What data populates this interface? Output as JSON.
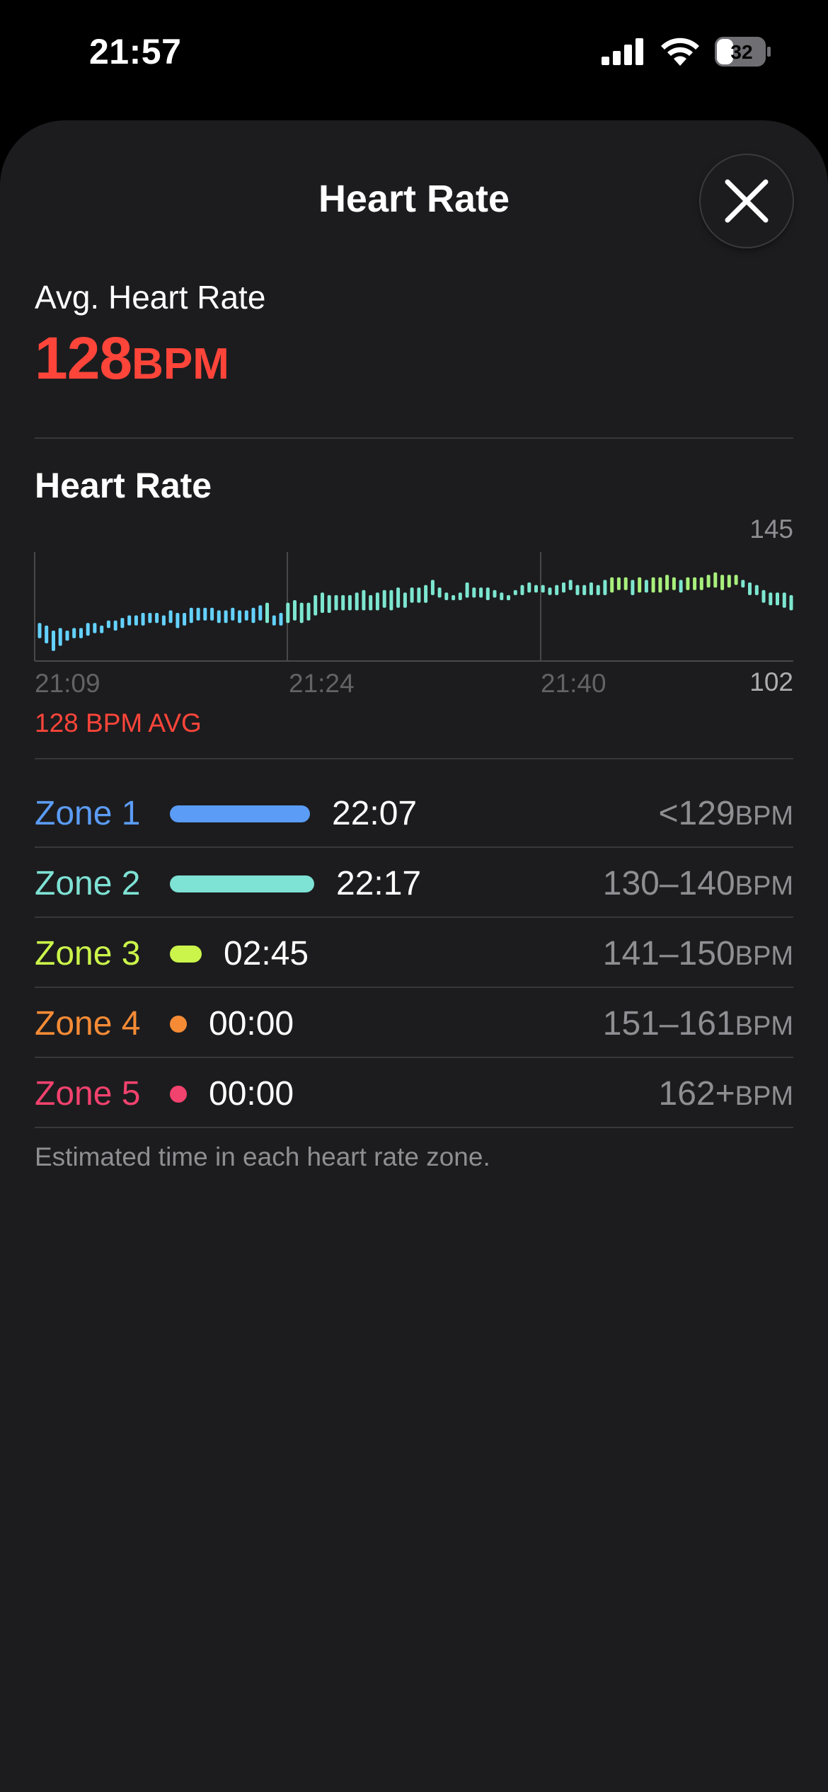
{
  "status_bar": {
    "time": "21:57",
    "battery": "32",
    "icons": [
      "signal-icon",
      "wifi-icon",
      "battery-icon"
    ]
  },
  "sheet": {
    "title": "Heart Rate",
    "close_icon": "close-icon"
  },
  "average": {
    "label": "Avg. Heart Rate",
    "value": "128",
    "unit": "BPM",
    "color": "#ff453a"
  },
  "chart": {
    "title": "Heart Rate",
    "avg_label": "128 BPM AVG"
  },
  "chart_data": {
    "type": "bar",
    "title": "",
    "x_tick_labels": [
      "21:09",
      "21:24",
      "21:40"
    ],
    "y_tick_labels": [
      "145",
      "102"
    ],
    "ylim": [
      102,
      145
    ],
    "grid": true,
    "series": [
      {
        "values": [
          [
            111,
            117
          ],
          [
            109,
            116
          ],
          [
            106,
            114
          ],
          [
            108,
            115
          ],
          [
            110,
            114
          ],
          [
            111,
            115
          ],
          [
            111,
            115
          ],
          [
            112,
            117
          ],
          [
            113,
            117
          ],
          [
            113,
            116
          ],
          [
            115,
            118
          ],
          [
            114,
            118
          ],
          [
            115,
            119
          ],
          [
            116,
            120
          ],
          [
            116,
            120
          ],
          [
            116,
            121
          ],
          [
            117,
            121
          ],
          [
            117,
            121
          ],
          [
            116,
            120
          ],
          [
            117,
            122
          ],
          [
            115,
            121
          ],
          [
            116,
            121
          ],
          [
            117,
            123
          ],
          [
            118,
            123
          ],
          [
            118,
            123
          ],
          [
            118,
            123
          ],
          [
            117,
            122
          ],
          [
            117,
            122
          ],
          [
            118,
            123
          ],
          [
            117,
            122
          ],
          [
            118,
            122
          ],
          [
            117,
            123
          ],
          [
            118,
            124
          ],
          [
            117,
            125
          ],
          [
            116,
            120
          ],
          [
            116,
            121
          ],
          [
            117,
            125
          ],
          [
            118,
            126
          ],
          [
            117,
            125
          ],
          [
            118,
            125
          ],
          [
            120,
            128
          ],
          [
            121,
            129
          ],
          [
            121,
            128
          ],
          [
            122,
            128
          ],
          [
            122,
            128
          ],
          [
            122,
            128
          ],
          [
            122,
            129
          ],
          [
            122,
            130
          ],
          [
            122,
            128
          ],
          [
            122,
            129
          ],
          [
            123,
            130
          ],
          [
            122,
            130
          ],
          [
            123,
            131
          ],
          [
            123,
            129
          ],
          [
            125,
            131
          ],
          [
            125,
            131
          ],
          [
            125,
            132
          ],
          [
            128,
            134
          ],
          [
            127,
            131
          ],
          [
            126,
            129
          ],
          [
            126,
            128
          ],
          [
            126,
            129
          ],
          [
            127,
            133
          ],
          [
            127,
            131
          ],
          [
            127,
            131
          ],
          [
            126,
            131
          ],
          [
            127,
            130
          ],
          [
            126,
            129
          ],
          [
            126,
            128
          ],
          [
            128,
            130
          ],
          [
            128,
            132
          ],
          [
            129,
            133
          ],
          [
            129,
            132
          ],
          [
            129,
            132
          ],
          [
            128,
            131
          ],
          [
            128,
            132
          ],
          [
            129,
            133
          ],
          [
            130,
            134
          ],
          [
            128,
            132
          ],
          [
            128,
            132
          ],
          [
            128,
            133
          ],
          [
            128,
            132
          ],
          [
            128,
            134
          ],
          [
            129,
            135
          ],
          [
            130,
            135
          ],
          [
            130,
            135
          ],
          [
            128,
            134
          ],
          [
            129,
            135
          ],
          [
            129,
            134
          ],
          [
            129,
            135
          ],
          [
            129,
            135
          ],
          [
            130,
            136
          ],
          [
            130,
            135
          ],
          [
            129,
            134
          ],
          [
            130,
            135
          ],
          [
            130,
            135
          ],
          [
            130,
            135
          ],
          [
            131,
            136
          ],
          [
            131,
            137
          ],
          [
            130,
            136
          ],
          [
            131,
            136
          ],
          [
            132,
            136
          ],
          [
            131,
            134
          ],
          [
            128,
            133
          ],
          [
            128,
            132
          ],
          [
            125,
            130
          ],
          [
            124,
            129
          ],
          [
            124,
            129
          ],
          [
            123,
            129
          ],
          [
            122,
            128
          ]
        ],
        "colors": [
          "#64d2ff",
          "#7de6d0",
          "#a8f07c"
        ]
      }
    ]
  },
  "zones": [
    {
      "name": "Zone 1",
      "time": "22:07",
      "range": "<129",
      "unit": "BPM",
      "color": "#5b9cf6",
      "share": 0.47
    },
    {
      "name": "Zone 2",
      "time": "22:17",
      "range": "130–140",
      "unit": "BPM",
      "color": "#7ee2d5",
      "share": 0.47
    },
    {
      "name": "Zone 3",
      "time": "02:45",
      "range": "141–150",
      "unit": "BPM",
      "color": "#cbf54a",
      "share": 0.06
    },
    {
      "name": "Zone 4",
      "time": "00:00",
      "range": "151–161",
      "unit": "BPM",
      "color": "#f68b36",
      "share": 0
    },
    {
      "name": "Zone 5",
      "time": "00:00",
      "range": "162+",
      "unit": "BPM",
      "color": "#f2426e",
      "share": 0
    }
  ],
  "zone_footnote": "Estimated time in each heart rate zone."
}
